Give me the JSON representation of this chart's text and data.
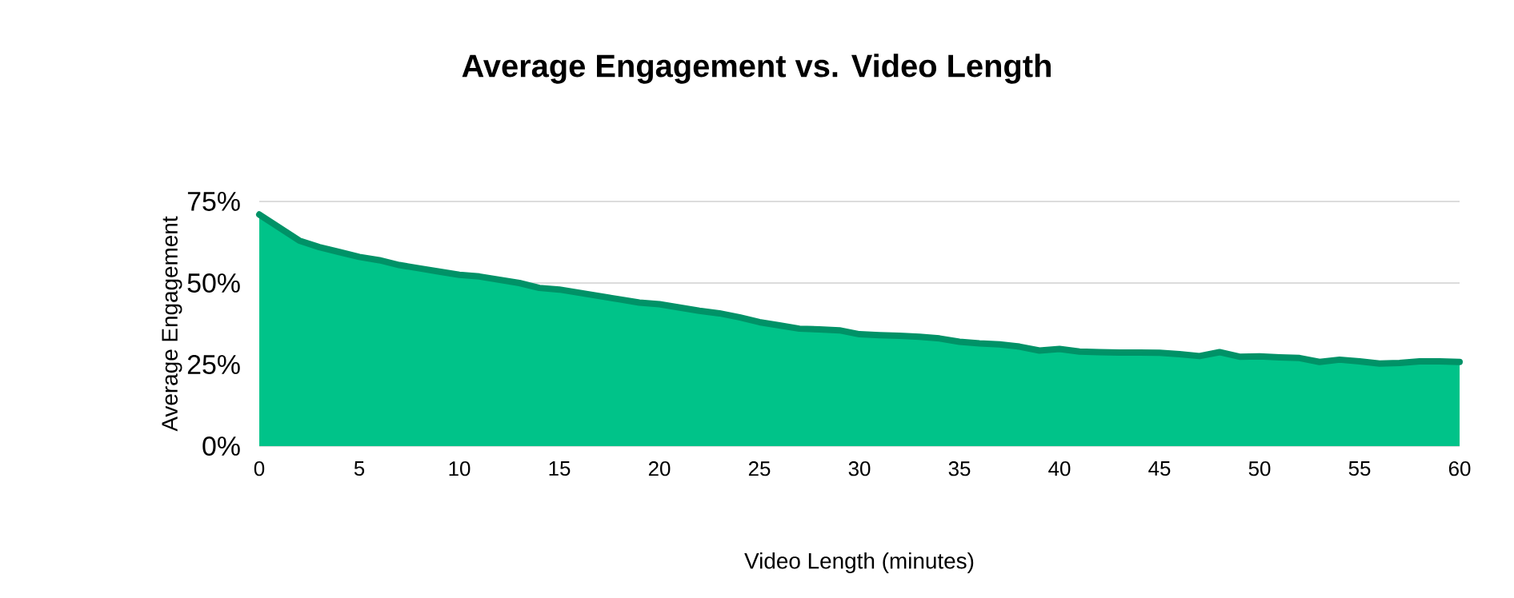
{
  "chart_data": {
    "type": "area",
    "title": "Average Engagement vs. Video Length",
    "xlabel": "Video Length (minutes)",
    "ylabel": "Average Engagement",
    "x": [
      0,
      1,
      2,
      3,
      4,
      5,
      6,
      7,
      8,
      9,
      10,
      11,
      12,
      13,
      14,
      15,
      16,
      17,
      18,
      19,
      20,
      21,
      22,
      23,
      24,
      25,
      26,
      27,
      28,
      29,
      30,
      31,
      32,
      33,
      34,
      35,
      36,
      37,
      38,
      39,
      40,
      41,
      42,
      43,
      44,
      45,
      46,
      47,
      48,
      49,
      50,
      51,
      52,
      53,
      54,
      55,
      56,
      57,
      58,
      59,
      60
    ],
    "series": [
      {
        "color": "#00c389",
        "values": [
          71,
          67,
          63,
          61,
          59.5,
          58,
          57,
          55.5,
          54.5,
          53.5,
          52.5,
          52,
          51,
          50,
          48.5,
          48,
          47,
          46,
          45,
          44,
          43.5,
          42.5,
          41.5,
          40.7,
          39.5,
          38,
          37,
          36,
          35.8,
          35.5,
          34.3,
          34,
          33.8,
          33.5,
          33,
          32,
          31.5,
          31.2,
          30.5,
          29.3,
          29.8,
          29,
          28.8,
          28.7,
          28.7,
          28.6,
          28.2,
          27.6,
          28.8,
          27.4,
          27.5,
          27.2,
          27,
          25.8,
          26.5,
          26,
          25.3,
          25.5,
          26,
          26,
          25.8
        ]
      }
    ],
    "xlim": [
      0,
      60
    ],
    "xticks": [
      0,
      5,
      10,
      15,
      20,
      25,
      30,
      35,
      40,
      45,
      50,
      55,
      60
    ],
    "ylim": [
      0,
      75
    ],
    "yticks": [
      {
        "value": 0,
        "label": "0%"
      },
      {
        "value": 25,
        "label": "25%"
      },
      {
        "value": 50,
        "label": "50%"
      },
      {
        "value": 75,
        "label": "75%"
      }
    ],
    "grid": "y"
  }
}
